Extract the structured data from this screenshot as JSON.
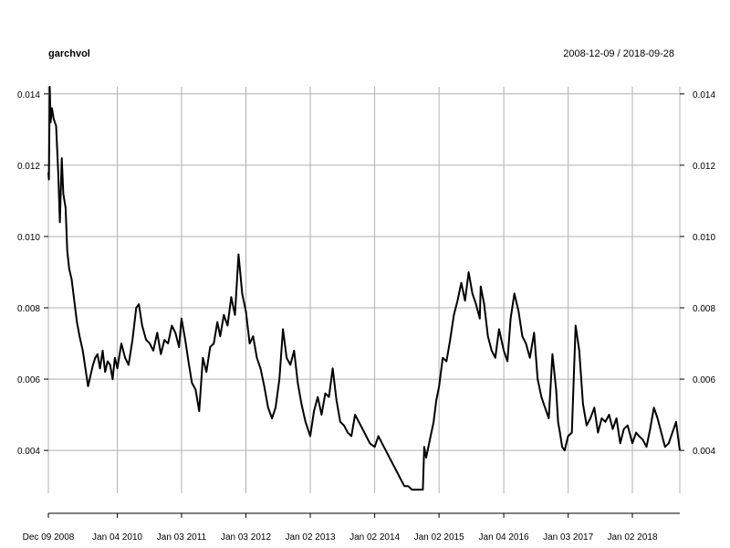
{
  "chart_data": {
    "type": "line",
    "title": "garchvol",
    "date_range": "2008-12-09 / 2018-09-28",
    "xlabel": "",
    "ylabel": "",
    "x_range": [
      "2008-12-09",
      "2018-09-28"
    ],
    "ylim": [
      0.0028,
      0.0142
    ],
    "y_ticks": [
      0.004,
      0.006,
      0.008,
      0.01,
      0.012,
      0.014
    ],
    "y_tick_labels": [
      "0.004",
      "0.006",
      "0.008",
      "0.010",
      "0.012",
      "0.014"
    ],
    "y_ticks_on_both_sides": true,
    "x_ticks": [
      "2008-12-09",
      "2010-01-04",
      "2011-01-03",
      "2012-01-03",
      "2013-01-02",
      "2014-01-02",
      "2015-01-02",
      "2016-01-04",
      "2017-01-03",
      "2018-01-02"
    ],
    "x_tick_labels": [
      "Dec 09 2008",
      "Jan 04 2010",
      "Jan 03 2011",
      "Jan 03 2012",
      "Jan 02 2013",
      "Jan 02 2014",
      "Jan 02 2015",
      "Jan 04 2016",
      "Jan 03 2017",
      "Jan 02 2018"
    ],
    "grid": true,
    "series_color": "#000000",
    "grid_color": "#b0b0b0",
    "series": [
      {
        "x": [
          "2008-12-09",
          "2008-12-12",
          "2008-12-17",
          "2008-12-22",
          "2008-12-29",
          "2009-01-08",
          "2009-01-22",
          "2009-02-03",
          "2009-02-12",
          "2009-02-23",
          "2009-03-04",
          "2009-03-17",
          "2009-03-26",
          "2009-04-06",
          "2009-04-20",
          "2009-05-05",
          "2009-05-20",
          "2009-06-04",
          "2009-06-22",
          "2009-07-07",
          "2009-07-22",
          "2009-08-05",
          "2009-08-19",
          "2009-09-01",
          "2009-09-14",
          "2009-09-28",
          "2009-10-13",
          "2009-10-27",
          "2009-11-10",
          "2009-11-24",
          "2009-12-08",
          "2009-12-21",
          "2010-01-04",
          "2010-01-27",
          "2010-02-17",
          "2010-03-09",
          "2010-03-31",
          "2010-04-21",
          "2010-05-06",
          "2010-05-25",
          "2010-06-16",
          "2010-07-07",
          "2010-07-27",
          "2010-08-18",
          "2010-09-08",
          "2010-09-28",
          "2010-10-19",
          "2010-11-09",
          "2010-11-29",
          "2010-12-20",
          "2011-01-03",
          "2011-01-24",
          "2011-02-11",
          "2011-03-03",
          "2011-03-24",
          "2011-04-13",
          "2011-05-04",
          "2011-05-24",
          "2011-06-14",
          "2011-07-05",
          "2011-07-25",
          "2011-08-10",
          "2011-08-31",
          "2011-09-21",
          "2011-10-12",
          "2011-11-02",
          "2011-11-22",
          "2011-12-13",
          "2012-01-03",
          "2012-01-24",
          "2012-02-13",
          "2012-03-05",
          "2012-03-26",
          "2012-04-16",
          "2012-05-08",
          "2012-05-30",
          "2012-06-19",
          "2012-07-11",
          "2012-07-31",
          "2012-08-21",
          "2012-09-11",
          "2012-10-02",
          "2012-10-23",
          "2012-11-13",
          "2012-12-06",
          "2013-01-02",
          "2013-01-23",
          "2013-02-13",
          "2013-03-07",
          "2013-03-28",
          "2013-04-18",
          "2013-05-09",
          "2013-05-31",
          "2013-06-21",
          "2013-07-12",
          "2013-08-02",
          "2013-08-23",
          "2013-09-13",
          "2013-10-04",
          "2013-10-25",
          "2013-11-15",
          "2013-12-06",
          "2014-01-02",
          "2014-01-23",
          "2014-02-13",
          "2014-03-06",
          "2014-03-27",
          "2014-04-17",
          "2014-05-08",
          "2014-05-29",
          "2014-06-19",
          "2014-07-11",
          "2014-08-01",
          "2014-08-22",
          "2014-09-12",
          "2014-10-02",
          "2014-10-10",
          "2014-10-21",
          "2014-11-11",
          "2014-12-02",
          "2014-12-17",
          "2015-01-02",
          "2015-01-23",
          "2015-02-13",
          "2015-03-06",
          "2015-03-27",
          "2015-04-17",
          "2015-05-08",
          "2015-05-29",
          "2015-06-19",
          "2015-07-10",
          "2015-07-31",
          "2015-08-21",
          "2015-08-26",
          "2015-09-15",
          "2015-10-06",
          "2015-10-27",
          "2015-11-17",
          "2015-12-08",
          "2016-01-04",
          "2016-01-25",
          "2016-02-12",
          "2016-03-04",
          "2016-03-28",
          "2016-04-18",
          "2016-05-09",
          "2016-05-31",
          "2016-06-24",
          "2016-07-14",
          "2016-08-04",
          "2016-08-25",
          "2016-09-15",
          "2016-10-06",
          "2016-10-27",
          "2016-11-07",
          "2016-11-17",
          "2016-11-30",
          "2016-12-14",
          "2017-01-03",
          "2017-01-24",
          "2017-02-14",
          "2017-03-07",
          "2017-03-28",
          "2017-04-18",
          "2017-05-09",
          "2017-05-31",
          "2017-06-21",
          "2017-07-12",
          "2017-08-02",
          "2017-08-23",
          "2017-09-13",
          "2017-10-04",
          "2017-10-25",
          "2017-11-15",
          "2017-12-06",
          "2018-01-02",
          "2018-01-23",
          "2018-02-09",
          "2018-03-02",
          "2018-03-23",
          "2018-04-13",
          "2018-05-04",
          "2018-05-25",
          "2018-06-15",
          "2018-07-06",
          "2018-07-27",
          "2018-08-17",
          "2018-09-07",
          "2018-09-28"
        ],
        "values": [
          0.0118,
          0.0116,
          0.0142,
          0.0132,
          0.0136,
          0.0133,
          0.0131,
          0.0118,
          0.0104,
          0.0122,
          0.0112,
          0.0108,
          0.0096,
          0.0091,
          0.0088,
          0.0082,
          0.0076,
          0.0072,
          0.0068,
          0.0063,
          0.0058,
          0.0061,
          0.0064,
          0.0066,
          0.0067,
          0.0063,
          0.0068,
          0.0062,
          0.0065,
          0.0064,
          0.006,
          0.0066,
          0.0063,
          0.007,
          0.0066,
          0.0064,
          0.0071,
          0.008,
          0.0081,
          0.0075,
          0.0071,
          0.007,
          0.0068,
          0.0073,
          0.0067,
          0.0071,
          0.007,
          0.0075,
          0.0073,
          0.0069,
          0.0077,
          0.0071,
          0.0065,
          0.0059,
          0.0057,
          0.0051,
          0.0066,
          0.0062,
          0.0069,
          0.007,
          0.0076,
          0.0072,
          0.0078,
          0.0075,
          0.0083,
          0.0078,
          0.0095,
          0.0084,
          0.0079,
          0.007,
          0.0072,
          0.0066,
          0.0063,
          0.0058,
          0.0052,
          0.0049,
          0.0052,
          0.006,
          0.0074,
          0.0066,
          0.0064,
          0.0068,
          0.0059,
          0.0053,
          0.0048,
          0.0044,
          0.0051,
          0.0055,
          0.005,
          0.0056,
          0.0055,
          0.0063,
          0.0054,
          0.0048,
          0.0047,
          0.0045,
          0.0044,
          0.005,
          0.0048,
          0.0046,
          0.0044,
          0.0042,
          0.0041,
          0.0044,
          0.0042,
          0.004,
          0.0038,
          0.0036,
          0.0034,
          0.0032,
          0.003,
          0.003,
          0.0029,
          0.0029,
          0.0029,
          0.0029,
          0.0041,
          0.0038,
          0.0043,
          0.0048,
          0.0054,
          0.0058,
          0.0066,
          0.0065,
          0.0071,
          0.0078,
          0.0082,
          0.0087,
          0.0082,
          0.009,
          0.0084,
          0.0081,
          0.0077,
          0.0086,
          0.0081,
          0.0072,
          0.0068,
          0.0066,
          0.0074,
          0.0068,
          0.0065,
          0.0077,
          0.0084,
          0.0079,
          0.0072,
          0.007,
          0.0066,
          0.0073,
          0.006,
          0.0055,
          0.0052,
          0.0049,
          0.0067,
          0.0057,
          0.0048,
          0.0045,
          0.0041,
          0.004,
          0.0044,
          0.0045,
          0.0075,
          0.0068,
          0.0053,
          0.0047,
          0.0049,
          0.0052,
          0.0045,
          0.0049,
          0.0048,
          0.005,
          0.0046,
          0.0049,
          0.0042,
          0.0046,
          0.0047,
          0.0042,
          0.0045,
          0.0044,
          0.0043,
          0.0041,
          0.0046,
          0.0052,
          0.0049,
          0.0045,
          0.0041,
          0.0042,
          0.0045,
          0.0048,
          0.004
        ]
      }
    ]
  }
}
